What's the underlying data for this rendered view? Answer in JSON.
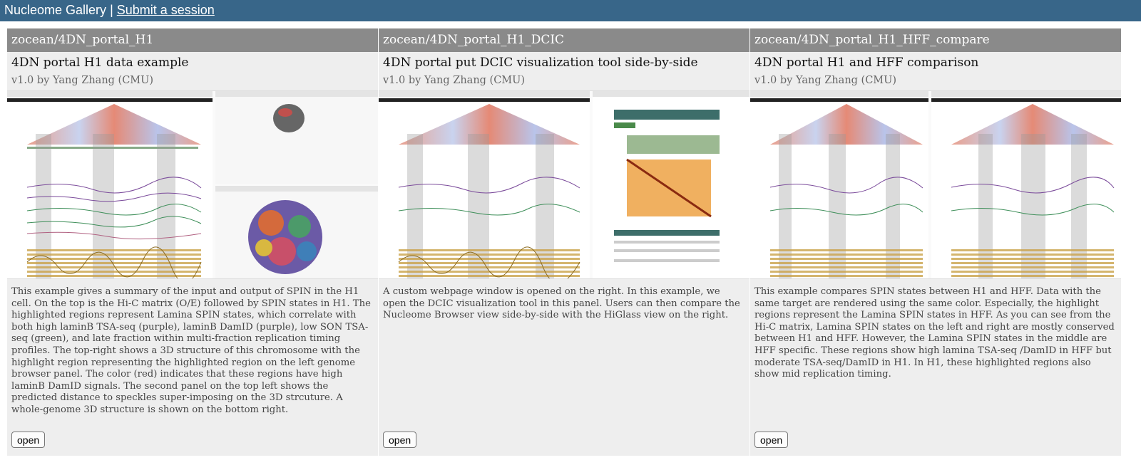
{
  "header": {
    "brand": "Nucleome Gallery",
    "separator": " | ",
    "submit_link": "Submit a session"
  },
  "cards": [
    {
      "repo": "zocean/4DN_portal_H1",
      "title": "4DN portal H1 data example",
      "version": "v1.0 by Yang Zhang (CMU)",
      "description": "This example gives a summary of the input and output of SPIN in the H1 cell. On the top is the Hi-C matrix (O/E) followed by SPIN states in H1. The highlighted regions represent Lamina SPIN states, which correlate with both high laminB TSA-seq (purple), laminB DamID (purple), low SON TSA-seq (green), and late fraction within multi-fraction replication timing profiles. The top-right shows a 3D structure of this chromosome with the highlight region representing the highlighted region on the left genome browser panel. The color (red) indicates that these regions have high laminB DamID signals. The second panel on the top left shows the predicted distance to speckles super-imposing on the 3D strcuture. A whole-genome 3D structure is shown on the bottom right.",
      "button": "open"
    },
    {
      "repo": "zocean/4DN_portal_H1_DCIC",
      "title": "4DN portal put DCIC visualization tool side-by-side",
      "version": "v1.0 by Yang Zhang (CMU)",
      "description": "A custom webpage window is opened on the right. In this example, we open the DCIC visualization tool in this panel. Users can then compare the Nucleome Browser view side-by-side with the HiGlass view on the right.",
      "button": "open"
    },
    {
      "repo": "zocean/4DN_portal_H1_HFF_compare",
      "title": "4DN portal H1 and HFF comparison",
      "version": "v1.0 by Yang Zhang (CMU)",
      "description": "This example compares SPIN states between H1 and HFF. Data with the same target are rendered using the same color. Especially, the highlight regions represent the Lamina SPIN states in HFF. As you can see from the Hi-C matrix, Lamina SPIN states on the left and right are mostly conserved between H1 and HFF. However, the Lamina SPIN states in the middle are HFF specific. These regions show high lamina TSA-seq /DamID in HFF but moderate TSA-seq/DamID in H1. In H1, these highlighted regions also show mid replication timing.",
      "button": "open"
    }
  ],
  "colors": {
    "topbar": "#386689",
    "card_header": "#8a8a8a",
    "card_body": "#eeeeee",
    "hic_red": "#d6604d",
    "hic_blue": "#4f6fb0",
    "track_purple": "#7a4a9a",
    "track_green": "#3f8f5a",
    "track_gold": "#b8963a",
    "higlass_orange": "#e08a3a"
  }
}
